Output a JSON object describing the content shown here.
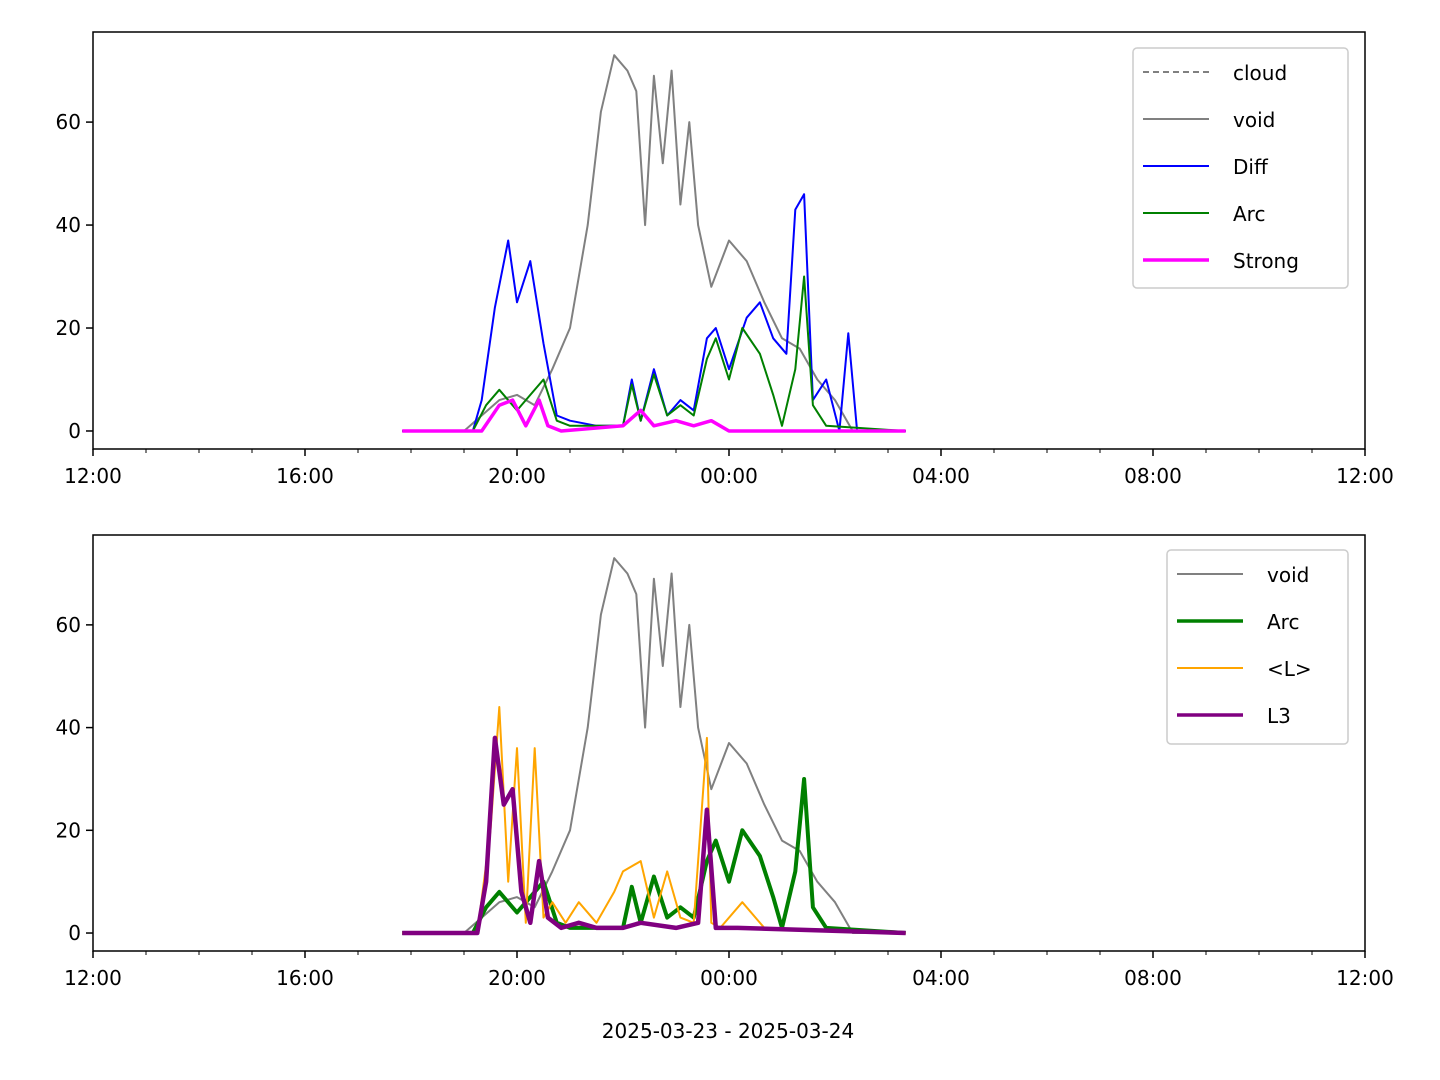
{
  "chart_data": [
    {
      "type": "line",
      "x_unit": "datetime",
      "xlim": [
        "2025-03-23 12:00",
        "2025-03-24 12:00"
      ],
      "x_tick_labels": [
        "12:00",
        "16:00",
        "20:00",
        "00:00",
        "04:00",
        "08:00",
        "12:00"
      ],
      "x_tick_times": [
        "2025-03-23 12:00",
        "2025-03-23 16:00",
        "2025-03-23 20:00",
        "2025-03-24 00:00",
        "2025-03-24 04:00",
        "2025-03-24 08:00",
        "2025-03-24 12:00"
      ],
      "ylim": [
        -3.5,
        77.5
      ],
      "y_ticks": [
        0,
        20,
        40,
        60
      ],
      "grid": false,
      "legend": "top-right",
      "series": [
        {
          "name": "cloud",
          "color": "#808080",
          "style": "dashed",
          "x": [],
          "y": []
        },
        {
          "name": "void",
          "color": "#808080",
          "style": "solid",
          "x": [
            "2025-03-23 17:50",
            "2025-03-23 19:00",
            "2025-03-23 19:20",
            "2025-03-23 19:40",
            "2025-03-23 20:00",
            "2025-03-23 20:20",
            "2025-03-23 20:40",
            "2025-03-23 21:00",
            "2025-03-23 21:20",
            "2025-03-23 21:35",
            "2025-03-23 21:50",
            "2025-03-23 22:05",
            "2025-03-23 22:15",
            "2025-03-23 22:25",
            "2025-03-23 22:35",
            "2025-03-23 22:45",
            "2025-03-23 22:55",
            "2025-03-23 23:05",
            "2025-03-23 23:15",
            "2025-03-23 23:25",
            "2025-03-23 23:40",
            "2025-03-24 00:00",
            "2025-03-24 00:20",
            "2025-03-24 00:40",
            "2025-03-24 01:00",
            "2025-03-24 01:20",
            "2025-03-24 01:40",
            "2025-03-24 02:00",
            "2025-03-24 02:20",
            "2025-03-24 03:20"
          ],
          "y": [
            0,
            0,
            3,
            6,
            7,
            5,
            12,
            20,
            40,
            62,
            73,
            70,
            66,
            40,
            69,
            52,
            70,
            44,
            60,
            40,
            28,
            37,
            33,
            25,
            18,
            16,
            10,
            6,
            0,
            0
          ]
        },
        {
          "name": "Diff",
          "color": "#0000ff",
          "style": "solid",
          "x": [
            "2025-03-23 17:50",
            "2025-03-23 19:10",
            "2025-03-23 19:20",
            "2025-03-23 19:35",
            "2025-03-23 19:50",
            "2025-03-23 20:00",
            "2025-03-23 20:15",
            "2025-03-23 20:30",
            "2025-03-23 20:45",
            "2025-03-23 21:00",
            "2025-03-23 21:30",
            "2025-03-23 22:00",
            "2025-03-23 22:10",
            "2025-03-23 22:20",
            "2025-03-23 22:35",
            "2025-03-23 22:50",
            "2025-03-23 23:05",
            "2025-03-23 23:20",
            "2025-03-23 23:35",
            "2025-03-23 23:45",
            "2025-03-24 00:00",
            "2025-03-24 00:20",
            "2025-03-24 00:35",
            "2025-03-24 00:50",
            "2025-03-24 01:05",
            "2025-03-24 01:15",
            "2025-03-24 01:25",
            "2025-03-24 01:35",
            "2025-03-24 01:50",
            "2025-03-24 02:05",
            "2025-03-24 02:15",
            "2025-03-24 02:25",
            "2025-03-24 03:20"
          ],
          "y": [
            0,
            0,
            6,
            24,
            37,
            25,
            33,
            17,
            3,
            2,
            1,
            1,
            10,
            2,
            12,
            3,
            6,
            4,
            18,
            20,
            12,
            22,
            25,
            18,
            15,
            43,
            46,
            6,
            10,
            0,
            19,
            0,
            0
          ]
        },
        {
          "name": "Arc",
          "color": "#008000",
          "style": "solid",
          "x": [
            "2025-03-23 17:50",
            "2025-03-23 19:10",
            "2025-03-23 19:25",
            "2025-03-23 19:40",
            "2025-03-23 20:00",
            "2025-03-23 20:15",
            "2025-03-23 20:30",
            "2025-03-23 20:45",
            "2025-03-23 21:00",
            "2025-03-23 21:30",
            "2025-03-23 22:00",
            "2025-03-23 22:10",
            "2025-03-23 22:20",
            "2025-03-23 22:35",
            "2025-03-23 22:50",
            "2025-03-23 23:05",
            "2025-03-23 23:20",
            "2025-03-23 23:35",
            "2025-03-23 23:45",
            "2025-03-24 00:00",
            "2025-03-24 00:15",
            "2025-03-24 00:35",
            "2025-03-24 00:50",
            "2025-03-24 01:00",
            "2025-03-24 01:15",
            "2025-03-24 01:25",
            "2025-03-24 01:35",
            "2025-03-24 01:50",
            "2025-03-24 03:20"
          ],
          "y": [
            0,
            0,
            5,
            8,
            4,
            7,
            10,
            2,
            1,
            1,
            1,
            9,
            2,
            11,
            3,
            5,
            3,
            14,
            18,
            10,
            20,
            15,
            7,
            1,
            12,
            30,
            5,
            1,
            0
          ]
        },
        {
          "name": "Strong",
          "color": "#ff00ff",
          "style": "solid",
          "x": [
            "2025-03-23 17:50",
            "2025-03-23 19:20",
            "2025-03-23 19:40",
            "2025-03-23 19:55",
            "2025-03-23 20:10",
            "2025-03-23 20:25",
            "2025-03-23 20:35",
            "2025-03-23 20:50",
            "2025-03-23 22:00",
            "2025-03-23 22:20",
            "2025-03-23 22:35",
            "2025-03-23 23:00",
            "2025-03-23 23:20",
            "2025-03-23 23:40",
            "2025-03-24 00:00",
            "2025-03-24 03:20"
          ],
          "y": [
            0,
            0,
            5,
            6,
            1,
            6,
            1,
            0,
            1,
            4,
            1,
            2,
            1,
            2,
            0,
            0
          ]
        }
      ]
    },
    {
      "type": "line",
      "x_unit": "datetime",
      "xlim": [
        "2025-03-23 12:00",
        "2025-03-24 12:00"
      ],
      "x_tick_labels": [
        "12:00",
        "16:00",
        "20:00",
        "00:00",
        "04:00",
        "08:00",
        "12:00"
      ],
      "x_tick_times": [
        "2025-03-23 12:00",
        "2025-03-23 16:00",
        "2025-03-23 20:00",
        "2025-03-24 00:00",
        "2025-03-24 04:00",
        "2025-03-24 08:00",
        "2025-03-24 12:00"
      ],
      "xlabel": "2025-03-23 - 2025-03-24",
      "ylim": [
        -3.5,
        77.5
      ],
      "y_ticks": [
        0,
        20,
        40,
        60
      ],
      "grid": false,
      "legend": "top-right",
      "series": [
        {
          "name": "void",
          "color": "#808080",
          "style": "solid",
          "x": [
            "2025-03-23 17:50",
            "2025-03-23 19:00",
            "2025-03-23 19:20",
            "2025-03-23 19:40",
            "2025-03-23 20:00",
            "2025-03-23 20:20",
            "2025-03-23 20:40",
            "2025-03-23 21:00",
            "2025-03-23 21:20",
            "2025-03-23 21:35",
            "2025-03-23 21:50",
            "2025-03-23 22:05",
            "2025-03-23 22:15",
            "2025-03-23 22:25",
            "2025-03-23 22:35",
            "2025-03-23 22:45",
            "2025-03-23 22:55",
            "2025-03-23 23:05",
            "2025-03-23 23:15",
            "2025-03-23 23:25",
            "2025-03-23 23:40",
            "2025-03-24 00:00",
            "2025-03-24 00:20",
            "2025-03-24 00:40",
            "2025-03-24 01:00",
            "2025-03-24 01:20",
            "2025-03-24 01:40",
            "2025-03-24 02:00",
            "2025-03-24 02:20",
            "2025-03-24 03:20"
          ],
          "y": [
            0,
            0,
            3,
            6,
            7,
            5,
            12,
            20,
            40,
            62,
            73,
            70,
            66,
            40,
            69,
            52,
            70,
            44,
            60,
            40,
            28,
            37,
            33,
            25,
            18,
            16,
            10,
            6,
            0,
            0
          ]
        },
        {
          "name": "Arc",
          "color": "#008000",
          "style": "solid",
          "x": [
            "2025-03-23 17:50",
            "2025-03-23 19:10",
            "2025-03-23 19:25",
            "2025-03-23 19:40",
            "2025-03-23 20:00",
            "2025-03-23 20:15",
            "2025-03-23 20:30",
            "2025-03-23 20:45",
            "2025-03-23 21:00",
            "2025-03-23 21:30",
            "2025-03-23 22:00",
            "2025-03-23 22:10",
            "2025-03-23 22:20",
            "2025-03-23 22:35",
            "2025-03-23 22:50",
            "2025-03-23 23:05",
            "2025-03-23 23:20",
            "2025-03-23 23:35",
            "2025-03-23 23:45",
            "2025-03-24 00:00",
            "2025-03-24 00:15",
            "2025-03-24 00:35",
            "2025-03-24 00:50",
            "2025-03-24 01:00",
            "2025-03-24 01:15",
            "2025-03-24 01:25",
            "2025-03-24 01:35",
            "2025-03-24 01:50",
            "2025-03-24 03:20"
          ],
          "y": [
            0,
            0,
            5,
            8,
            4,
            7,
            10,
            2,
            1,
            1,
            1,
            9,
            2,
            11,
            3,
            5,
            3,
            14,
            18,
            10,
            20,
            15,
            7,
            1,
            12,
            30,
            5,
            1,
            0
          ]
        },
        {
          "name": "<L>",
          "color": "#ffa500",
          "style": "solid",
          "x": [
            "2025-03-23 17:50",
            "2025-03-23 19:15",
            "2025-03-23 19:30",
            "2025-03-23 19:40",
            "2025-03-23 19:50",
            "2025-03-23 20:00",
            "2025-03-23 20:10",
            "2025-03-23 20:20",
            "2025-03-23 20:30",
            "2025-03-23 20:40",
            "2025-03-23 20:55",
            "2025-03-23 21:10",
            "2025-03-23 21:30",
            "2025-03-23 21:50",
            "2025-03-23 22:00",
            "2025-03-23 22:20",
            "2025-03-23 22:35",
            "2025-03-23 22:50",
            "2025-03-23 23:05",
            "2025-03-23 23:20",
            "2025-03-23 23:35",
            "2025-03-23 23:40",
            "2025-03-23 23:50",
            "2025-03-24 00:15",
            "2025-03-24 00:40",
            "2025-03-24 03:20"
          ],
          "y": [
            0,
            0,
            20,
            44,
            10,
            36,
            2,
            36,
            3,
            6,
            2,
            6,
            2,
            8,
            12,
            14,
            3,
            12,
            3,
            2,
            38,
            2,
            1,
            6,
            1,
            0
          ]
        },
        {
          "name": "L3",
          "color": "#800080",
          "style": "solid",
          "x": [
            "2025-03-23 17:50",
            "2025-03-23 19:15",
            "2025-03-23 19:25",
            "2025-03-23 19:35",
            "2025-03-23 19:45",
            "2025-03-23 19:55",
            "2025-03-23 20:05",
            "2025-03-23 20:15",
            "2025-03-23 20:25",
            "2025-03-23 20:35",
            "2025-03-23 20:50",
            "2025-03-23 21:10",
            "2025-03-23 21:30",
            "2025-03-23 22:00",
            "2025-03-23 22:20",
            "2025-03-23 23:00",
            "2025-03-23 23:25",
            "2025-03-23 23:35",
            "2025-03-23 23:45",
            "2025-03-24 00:10",
            "2025-03-24 03:20"
          ],
          "y": [
            0,
            0,
            10,
            38,
            25,
            28,
            8,
            2,
            14,
            3,
            1,
            2,
            1,
            1,
            2,
            1,
            2,
            24,
            1,
            1,
            0
          ]
        }
      ]
    }
  ]
}
